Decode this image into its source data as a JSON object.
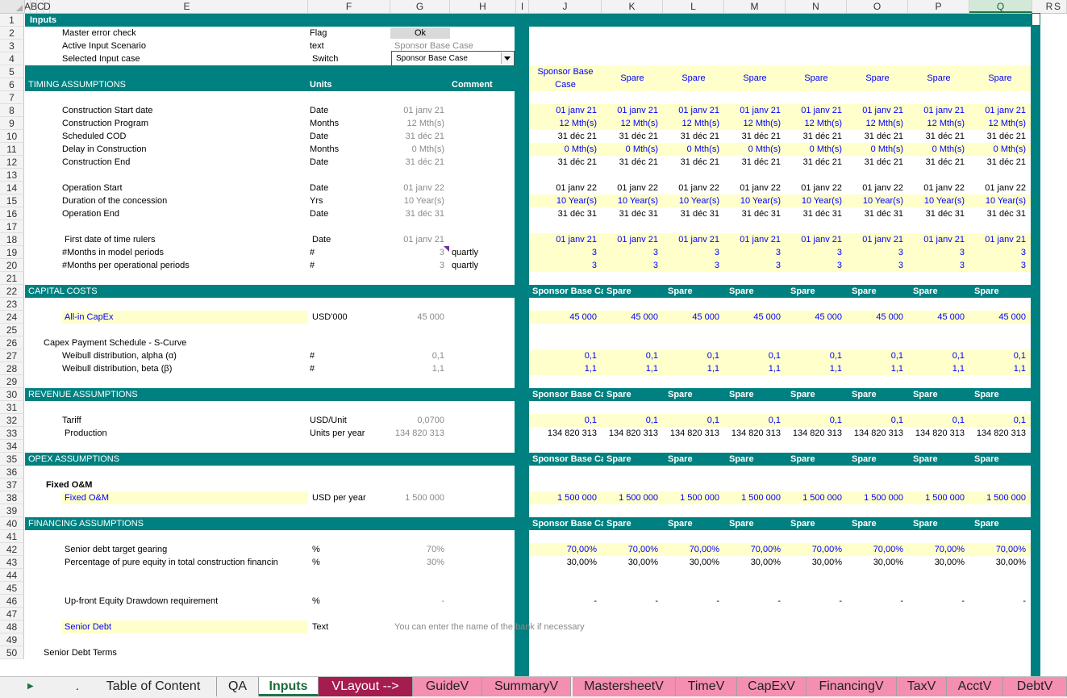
{
  "columns": [
    "A",
    "B",
    "C",
    "D",
    "E",
    "F",
    "G",
    "H",
    "I",
    "J",
    "K",
    "L",
    "M",
    "N",
    "O",
    "P",
    "Q",
    "R",
    "S"
  ],
  "rows": [
    "1",
    "2",
    "3",
    "4",
    "5",
    "6",
    "7",
    "8",
    "9",
    "10",
    "11",
    "12",
    "13",
    "14",
    "15",
    "16",
    "17",
    "18",
    "19",
    "20",
    "21",
    "22",
    "23",
    "24",
    "25",
    "26",
    "27",
    "28",
    "29",
    "30",
    "31",
    "32",
    "33",
    "34",
    "35",
    "36",
    "37",
    "38",
    "39",
    "40",
    "41",
    "42",
    "43",
    "44",
    "45",
    "46",
    "47",
    "48",
    "49",
    "50"
  ],
  "sheet_title": "Inputs",
  "top": {
    "master_error": {
      "label": "Master error check",
      "unit": "Flag",
      "value": "Ok"
    },
    "active_scenario": {
      "label": "Active Input Scenario",
      "unit": "text",
      "value": "Sponsor Base Case"
    },
    "selected_case": {
      "label": "Selected Input case",
      "unit": "Switch",
      "value": "Sponsor Base Case"
    }
  },
  "scenario_headers": [
    "Sponsor Base Case",
    "Spare",
    "Spare",
    "Spare",
    "Spare",
    "Spare",
    "Spare",
    "Spare"
  ],
  "section_headers": [
    "Sponsor Base Cas",
    "Spare",
    "Spare",
    "Spare",
    "Spare",
    "Spare",
    "Spare",
    "Spare"
  ],
  "timing": {
    "title": "TIMING ASSUMPTIONS",
    "units_label": "Units",
    "comment_label": "Comment",
    "rows": [
      {
        "label": "Construction Start date",
        "unit": "Date",
        "g": "01 janv 21",
        "vals": [
          "01 janv 21",
          "01 janv 21",
          "01 janv 21",
          "01 janv 21",
          "01 janv 21",
          "01 janv 21",
          "01 janv 21",
          "01 janv 21"
        ]
      },
      {
        "label": "Construction Program",
        "unit": "Months",
        "g": "12 Mth(s)",
        "vals": [
          "12 Mth(s)",
          "12 Mth(s)",
          "12 Mth(s)",
          "12 Mth(s)",
          "12 Mth(s)",
          "12 Mth(s)",
          "12 Mth(s)",
          "12 Mth(s)"
        ]
      },
      {
        "label": "Scheduled COD",
        "unit": "Date",
        "g": "31 déc 21",
        "vals": [
          "31 déc 21",
          "31 déc 21",
          "31 déc 21",
          "31 déc 21",
          "31 déc 21",
          "31 déc 21",
          "31 déc 21",
          "31 déc 21"
        ]
      },
      {
        "label": "Delay in Construction",
        "unit": "Months",
        "g": "0 Mth(s)",
        "vals": [
          "0 Mth(s)",
          "0 Mth(s)",
          "0 Mth(s)",
          "0 Mth(s)",
          "0 Mth(s)",
          "0 Mth(s)",
          "0 Mth(s)",
          "0 Mth(s)"
        ]
      },
      {
        "label": "Construction End",
        "unit": "Date",
        "g": "31 déc 21",
        "vals": [
          "31 déc 21",
          "31 déc 21",
          "31 déc 21",
          "31 déc 21",
          "31 déc 21",
          "31 déc 21",
          "31 déc 21",
          "31 déc 21"
        ]
      },
      {
        "label": "Operation Start",
        "unit": "Date",
        "g": "01 janv 22",
        "vals": [
          "01 janv 22",
          "01 janv 22",
          "01 janv 22",
          "01 janv 22",
          "01 janv 22",
          "01 janv 22",
          "01 janv 22",
          "01 janv 22"
        ]
      },
      {
        "label": "Duration of the concession",
        "unit": "Yrs",
        "g": "10 Year(s)",
        "vals": [
          "10 Year(s)",
          "10 Year(s)",
          "10 Year(s)",
          "10 Year(s)",
          "10 Year(s)",
          "10 Year(s)",
          "10 Year(s)",
          "10 Year(s)"
        ]
      },
      {
        "label": "Operation End",
        "unit": "Date",
        "g": "31 déc 31",
        "vals": [
          "31 déc 31",
          "31 déc 31",
          "31 déc 31",
          "31 déc 31",
          "31 déc 31",
          "31 déc 31",
          "31 déc 31",
          "31 déc 31"
        ]
      },
      {
        "label": "First date of time rulers",
        "unit": "Date",
        "g": "01 janv 21",
        "vals": [
          "01 janv 21",
          "01 janv 21",
          "01 janv 21",
          "01 janv 21",
          "01 janv 21",
          "01 janv 21",
          "01 janv 21",
          "01 janv 21"
        ]
      },
      {
        "label": "#Months in model periods",
        "unit": "#",
        "g": "3",
        "comment": "quartly",
        "vals": [
          "3",
          "3",
          "3",
          "3",
          "3",
          "3",
          "3",
          "3"
        ]
      },
      {
        "label": "#Months per operational periods",
        "unit": "#",
        "g": "3",
        "comment": "quartly",
        "vals": [
          "3",
          "3",
          "3",
          "3",
          "3",
          "3",
          "3",
          "3"
        ]
      }
    ]
  },
  "capex": {
    "title": "CAPITAL COSTS",
    "allin": {
      "label": "All-in CapEx",
      "unit": "USD'000",
      "g": "45 000",
      "vals": [
        "45 000",
        "45 000",
        "45 000",
        "45 000",
        "45 000",
        "45 000",
        "45 000",
        "45 000"
      ]
    },
    "schedule_label": "Capex Payment Schedule - S-Curve",
    "alpha": {
      "label": "Weibull distribution, alpha (α)",
      "unit": "#",
      "g": "0,1",
      "vals": [
        "0,1",
        "0,1",
        "0,1",
        "0,1",
        "0,1",
        "0,1",
        "0,1",
        "0,1"
      ]
    },
    "beta": {
      "label": "Weibull distribution, beta (β)",
      "unit": "#",
      "g": "1,1",
      "vals": [
        "1,1",
        "1,1",
        "1,1",
        "1,1",
        "1,1",
        "1,1",
        "1,1",
        "1,1"
      ]
    }
  },
  "revenue": {
    "title": "REVENUE ASSUMPTIONS",
    "tariff": {
      "label": "Tariff",
      "unit": "USD/Unit",
      "g": "0,0700",
      "vals": [
        "0,1",
        "0,1",
        "0,1",
        "0,1",
        "0,1",
        "0,1",
        "0,1",
        "0,1"
      ]
    },
    "production": {
      "label": "Production",
      "unit": "Units per year",
      "g": "134 820 313",
      "vals": [
        "134 820 313",
        "134 820 313",
        "134 820 313",
        "134 820 313",
        "134 820 313",
        "134 820 313",
        "134 820 313",
        "134 820 313"
      ]
    }
  },
  "opex": {
    "title": "OPEX ASSUMPTIONS",
    "fixed_heading": "Fixed O&M",
    "fixed": {
      "label": "Fixed O&M",
      "unit": "USD per year",
      "g": "1 500 000",
      "vals": [
        "1 500 000",
        "1 500 000",
        "1 500 000",
        "1 500 000",
        "1 500 000",
        "1 500 000",
        "1 500 000",
        "1 500 000"
      ]
    }
  },
  "financing": {
    "title": "FINANCING ASSUMPTIONS",
    "gearing": {
      "label": "Senior debt target gearing",
      "unit": "%",
      "g": "70%",
      "vals": [
        "70,00%",
        "70,00%",
        "70,00%",
        "70,00%",
        "70,00%",
        "70,00%",
        "70,00%",
        "70,00%"
      ]
    },
    "pure_equity": {
      "label": "Percentage of pure equity in total construction financin",
      "unit": "%",
      "g": "30%",
      "vals": [
        "30,00%",
        "30,00%",
        "30,00%",
        "30,00%",
        "30,00%",
        "30,00%",
        "30,00%",
        "30,00%"
      ]
    },
    "upfront": {
      "label": "Up-front Equity Drawdown requirement",
      "unit": "%",
      "g": "-",
      "vals": [
        "-",
        "-",
        "-",
        "-",
        "-",
        "-",
        "-",
        "-"
      ]
    },
    "senior_debt": {
      "label": "Senior Debt",
      "unit": "Text",
      "comment": "You can enter the name of the bank if necessary"
    },
    "terms_label": "Senior Debt  Terms"
  },
  "tabs": [
    {
      "label": "Table of Content",
      "style": "plain"
    },
    {
      "label": "QA",
      "style": "plain"
    },
    {
      "label": "Inputs",
      "style": "active"
    },
    {
      "label": "VLayout -->",
      "style": "dark"
    },
    {
      "label": "GuideV",
      "style": "pink"
    },
    {
      "label": "SummaryV",
      "style": "pink"
    },
    {
      "label": "MastersheetV",
      "style": "pink"
    },
    {
      "label": "TimeV",
      "style": "pink"
    },
    {
      "label": "CapExV",
      "style": "pink"
    },
    {
      "label": "FinancingV",
      "style": "pink"
    },
    {
      "label": "TaxV",
      "style": "pink"
    },
    {
      "label": "AcctV",
      "style": "pink"
    },
    {
      "label": "DebtV",
      "style": "pink"
    }
  ],
  "tab_nav": {
    "next": "▶",
    "dot": "."
  },
  "colors": {
    "teal": "#008080",
    "yellow": "#ffffcc",
    "input_blue": "#0000ff",
    "pink_tab": "#f58fb1",
    "dark_tab": "#a51c4e"
  }
}
